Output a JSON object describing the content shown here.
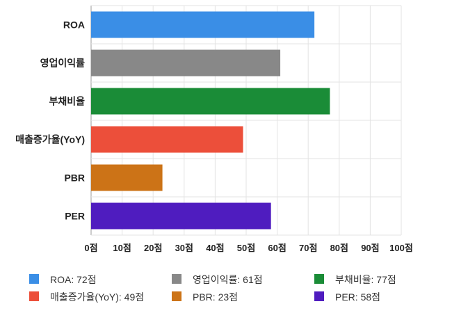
{
  "chart_data": {
    "type": "bar",
    "orientation": "horizontal",
    "categories": [
      "ROA",
      "영업이익률",
      "부채비율",
      "매출증가율(YoY)",
      "PBR",
      "PER"
    ],
    "values": [
      72,
      61,
      77,
      49,
      23,
      58
    ],
    "colors": [
      "#3a8ee6",
      "#888888",
      "#1a8c37",
      "#ec4f3a",
      "#cc7317",
      "#4f1cbf"
    ],
    "xlim": [
      0,
      100
    ],
    "xticks": [
      0,
      10,
      20,
      30,
      40,
      50,
      60,
      70,
      80,
      90,
      100
    ],
    "tick_suffix": "점",
    "grid": true,
    "legend_position": "bottom",
    "legend": [
      "ROA: 72점",
      "영업이익률: 61점",
      "부채비율: 77점",
      "매출증가율(YoY): 49점",
      "PBR: 23점",
      "PER: 58점"
    ]
  }
}
